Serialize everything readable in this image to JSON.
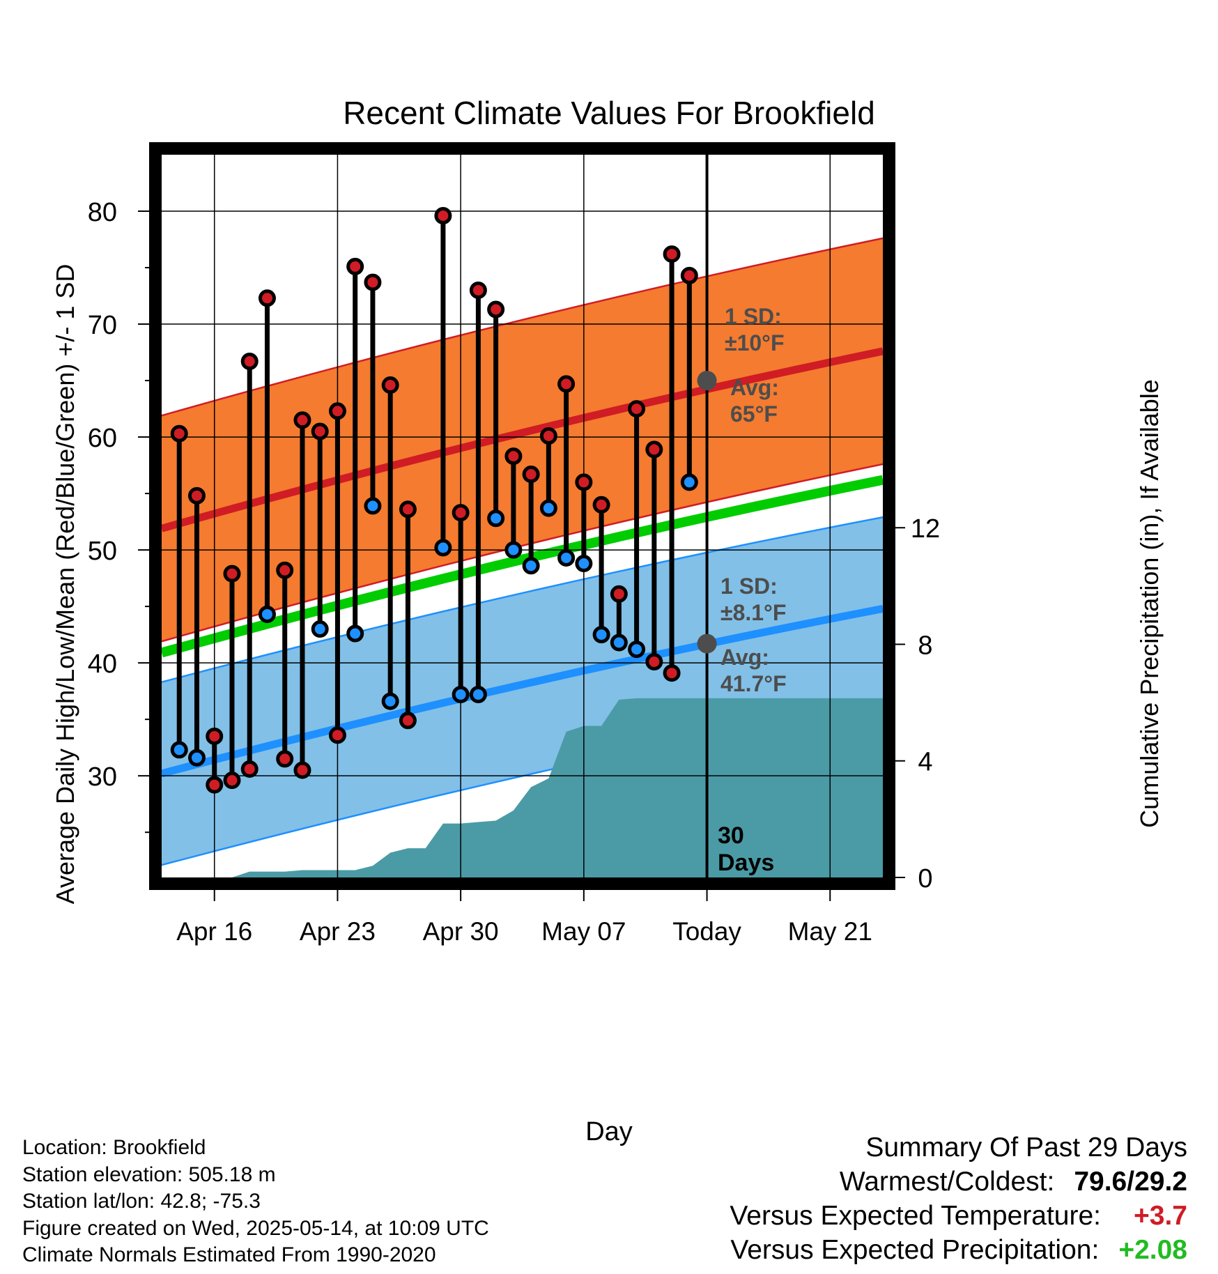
{
  "chart_data": {
    "type": "line",
    "title": "Recent Climate Values For Brookfield",
    "xlabel": "Day",
    "ylabel": "Average Daily High/Low/Mean (Red/Blue/Green) +/- 1 SD",
    "ylabel_right": "Cumulative Precipitation (in), If Available",
    "x_tick_labels": [
      "Apr 16",
      "Apr 23",
      "Apr 30",
      "May 07",
      "Today",
      "May 21"
    ],
    "xlim": [
      "2025-04-13",
      "2025-05-24"
    ],
    "ylim": [
      21,
      85
    ],
    "yticks": [
      30,
      40,
      50,
      60,
      70,
      80
    ],
    "ylim_right": [
      0,
      24.8
    ],
    "yticks_right": [
      0,
      4,
      8,
      12
    ],
    "grid": true,
    "today": "2025-05-14",
    "today_label": "30 Days",
    "series": [
      {
        "name": "Daily High",
        "color": "#d01c24",
        "x": [
          "2025-04-14",
          "2025-04-15",
          "2025-04-16",
          "2025-04-17",
          "2025-04-18",
          "2025-04-19",
          "2025-04-20",
          "2025-04-21",
          "2025-04-22",
          "2025-04-23",
          "2025-04-24",
          "2025-04-25",
          "2025-04-26",
          "2025-04-27",
          "2025-04-29",
          "2025-04-30",
          "2025-05-01",
          "2025-05-02",
          "2025-05-03",
          "2025-05-04",
          "2025-05-05",
          "2025-05-06",
          "2025-05-07",
          "2025-05-08",
          "2025-05-09",
          "2025-05-10",
          "2025-05-11",
          "2025-05-12",
          "2025-05-13"
        ],
        "values": [
          60.3,
          54.8,
          33.5,
          47.9,
          66.7,
          72.3,
          48.2,
          61.5,
          60.5,
          62.3,
          75.1,
          73.7,
          64.6,
          53.6,
          79.6,
          53.3,
          73.0,
          71.3,
          58.3,
          56.7,
          60.1,
          64.7,
          56.0,
          54.0,
          46.1,
          62.5,
          58.9,
          76.2,
          74.3
        ]
      },
      {
        "name": "Daily Low",
        "color": "#1e90ff",
        "x": [
          "2025-04-14",
          "2025-04-15",
          "2025-04-16",
          "2025-04-17",
          "2025-04-18",
          "2025-04-19",
          "2025-04-20",
          "2025-04-21",
          "2025-04-22",
          "2025-04-23",
          "2025-04-24",
          "2025-04-25",
          "2025-04-26",
          "2025-04-27",
          "2025-04-29",
          "2025-04-30",
          "2025-05-01",
          "2025-05-02",
          "2025-05-03",
          "2025-05-04",
          "2025-05-05",
          "2025-05-06",
          "2025-05-07",
          "2025-05-08",
          "2025-05-09",
          "2025-05-10",
          "2025-05-11",
          "2025-05-12",
          "2025-05-13"
        ],
        "values": [
          32.3,
          31.6,
          29.2,
          29.6,
          30.6,
          44.3,
          31.5,
          30.5,
          43.0,
          33.6,
          42.6,
          53.9,
          36.6,
          34.9,
          50.2,
          37.2,
          37.2,
          52.8,
          50.0,
          48.6,
          53.7,
          49.3,
          48.8,
          42.5,
          41.8,
          41.2,
          40.1,
          39.1,
          56.0
        ]
      },
      {
        "name": "Normal High",
        "color": "#d01c24",
        "x": [
          "2025-04-13",
          "2025-05-24"
        ],
        "values": [
          51.9,
          67.6
        ],
        "sd_band": [
          61.9,
          77.6
        ]
      },
      {
        "name": "Normal Low",
        "color": "#1e90ff",
        "x": [
          "2025-04-13",
          "2025-05-24"
        ],
        "values": [
          30.2,
          44.8
        ],
        "sd_band": [
          22.1,
          36.7
        ]
      },
      {
        "name": "Normal Mean",
        "color": "#00cc00",
        "x": [
          "2025-04-13",
          "2025-05-24"
        ],
        "values": [
          40.9,
          56.2
        ]
      },
      {
        "name": "Cumulative Precipitation",
        "color": "#4a9ba6",
        "axis": "right",
        "x": [
          "2025-04-13",
          "2025-04-16",
          "2025-04-17",
          "2025-04-18",
          "2025-04-19",
          "2025-04-20",
          "2025-04-21",
          "2025-04-22",
          "2025-04-23",
          "2025-04-24",
          "2025-04-25",
          "2025-04-26",
          "2025-04-27",
          "2025-04-28",
          "2025-04-29",
          "2025-04-30",
          "2025-05-01",
          "2025-05-02",
          "2025-05-03",
          "2025-05-04",
          "2025-05-05",
          "2025-05-06",
          "2025-05-07",
          "2025-05-08",
          "2025-05-09",
          "2025-05-10",
          "2025-05-11",
          "2025-05-12",
          "2025-05-13",
          "2025-05-14",
          "2025-05-24"
        ],
        "values": [
          0,
          0,
          0,
          0.2,
          0.2,
          0.2,
          0.25,
          0.25,
          0.25,
          0.25,
          0.4,
          0.85,
          1.0,
          1.0,
          1.85,
          1.85,
          1.9,
          1.95,
          2.3,
          3.1,
          3.4,
          5.0,
          5.2,
          5.2,
          6.1,
          6.15,
          6.15,
          6.15,
          6.15,
          6.15,
          6.15
        ]
      }
    ],
    "annotations": {
      "high_sd": "1 SD: ±10°F",
      "high_avg": "Avg: 65°F",
      "high_avg_value": 65,
      "low_sd": "1 SD: ±8.1°F",
      "low_avg": "Avg: 41.7°F",
      "low_avg_value": 41.7
    }
  },
  "info": {
    "location": "Location: Brookfield",
    "elevation": "Station elevation: 505.18 m",
    "latlon": "Station lat/lon: 42.8; -75.3",
    "created": "Figure created on Wed, 2025-05-14, at 10:09 UTC",
    "normals": "Climate Normals Estimated From 1990-2020"
  },
  "summary": {
    "title": "Summary Of Past 29 Days",
    "warmest_label": "Warmest/Coldest:",
    "warmest_value": "79.6/29.2",
    "temp_label": "Versus Expected Temperature:",
    "temp_value": "+3.7",
    "temp_color": "#d01c24",
    "precip_label": "Versus Expected Precipitation:",
    "precip_value": "+2.08",
    "precip_color": "#22bb22"
  }
}
